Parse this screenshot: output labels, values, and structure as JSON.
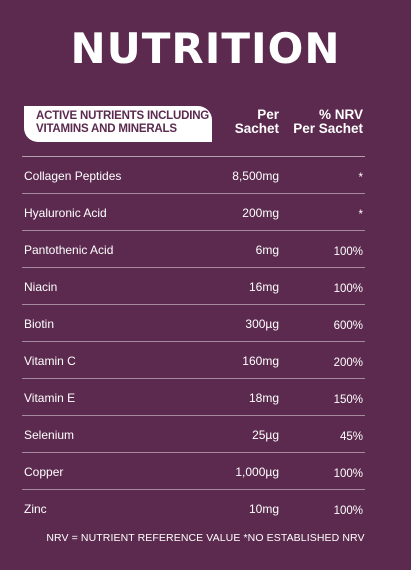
{
  "title": "NUTRITION",
  "header": {
    "section_line1": "ACTIVE NUTRIENTS INCLUDING",
    "section_line2": "VITAMINS AND MINERALS",
    "per_line1": "Per",
    "per_line2": "Sachet",
    "nrv_line1": "% NRV",
    "nrv_line2": "Per Sachet"
  },
  "rows": [
    {
      "name": "Collagen Peptides",
      "per_sachet": "8,500mg",
      "nrv": "*"
    },
    {
      "name": "Hyaluronic Acid",
      "per_sachet": "200mg",
      "nrv": "*"
    },
    {
      "name": "Pantothenic Acid",
      "per_sachet": "6mg",
      "nrv": "100%"
    },
    {
      "name": "Niacin",
      "per_sachet": "16mg",
      "nrv": "100%"
    },
    {
      "name": "Biotin",
      "per_sachet": "300µg",
      "nrv": "600%"
    },
    {
      "name": "Vitamin C",
      "per_sachet": "160mg",
      "nrv": "200%"
    },
    {
      "name": "Vitamin E",
      "per_sachet": "18mg",
      "nrv": "150%"
    },
    {
      "name": "Selenium",
      "per_sachet": "25µg",
      "nrv": "45%"
    },
    {
      "name": "Copper",
      "per_sachet": "1,000µg",
      "nrv": "100%"
    },
    {
      "name": "Zinc",
      "per_sachet": "10mg",
      "nrv": "100%"
    }
  ],
  "footnote": "NRV = NUTRIENT REFERENCE VALUE   *NO ESTABLISHED NRV",
  "colors": {
    "background": "#5b2a4e",
    "text": "#ffffff",
    "badge_background": "#ffffff",
    "badge_text": "#5b2a4e"
  }
}
